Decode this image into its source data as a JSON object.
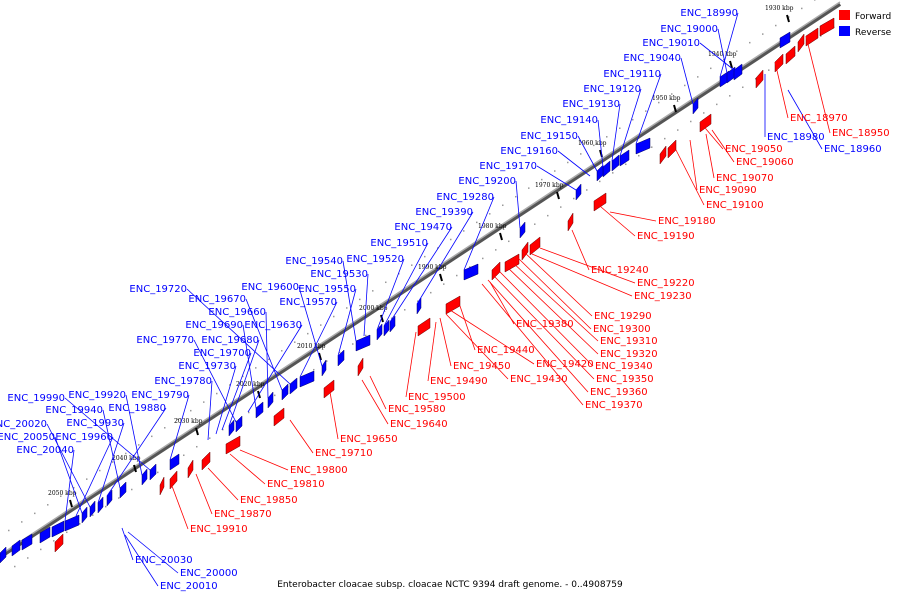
{
  "caption": "Enterobacter cloacae subsp. cloacae NCTC 9394 draft genome. - 0..4908759",
  "legend": [
    {
      "label": "Forward",
      "color": "#ff0000"
    },
    {
      "label": "Reverse",
      "color": "#0000ff"
    }
  ],
  "colors": {
    "forward": "#ff0000",
    "reverse": "#0000ff",
    "backbone": "#888888",
    "leader": "#000000"
  },
  "ticks": [
    "1930 kbp",
    "1940 kbp",
    "1950 kbp",
    "1960 kbp",
    "1970 kbp",
    "1980 kbp",
    "1990 kbp",
    "2000 kbp",
    "2010 kbp",
    "2020 kbp",
    "2030 kbp",
    "2040 kbp",
    "2050 kbp"
  ],
  "reverse_labels": [
    "ENC_18990",
    "ENC_19000",
    "ENC_19010",
    "ENC_19040",
    "ENC_19110",
    "ENC_19120",
    "ENC_19130",
    "ENC_19140",
    "ENC_19150",
    "ENC_19160",
    "ENC_19170",
    "ENC_19200",
    "ENC_19280",
    "ENC_19390",
    "ENC_19470",
    "ENC_19510",
    "ENC_19520",
    "ENC_19540",
    "ENC_19530",
    "ENC_19550",
    "ENC_19600",
    "ENC_19570",
    "ENC_19720",
    "ENC_19670",
    "ENC_19660",
    "ENC_19690",
    "ENC_19630",
    "ENC_19770",
    "ENC_19680",
    "ENC_19700",
    "ENC_19730",
    "ENC_19780",
    "ENC_19790",
    "ENC_19990",
    "ENC_19920",
    "ENC_19940",
    "ENC_19880",
    "ENC_19930",
    "ENC_20020",
    "ENC_20050",
    "ENC_19960",
    "ENC_20040",
    "ENC_18980",
    "ENC_18960",
    "ENC_20030",
    "ENC_20000",
    "ENC_20010"
  ],
  "forward_labels": [
    "ENC_18970",
    "ENC_18950",
    "ENC_19050",
    "ENC_19060",
    "ENC_19070",
    "ENC_19090",
    "ENC_19100",
    "ENC_19180",
    "ENC_19190",
    "ENC_19240",
    "ENC_19220",
    "ENC_19230",
    "ENC_19290",
    "ENC_19300",
    "ENC_19310",
    "ENC_19320",
    "ENC_19340",
    "ENC_19350",
    "ENC_19360",
    "ENC_19370",
    "ENC_19380",
    "ENC_19440",
    "ENC_19420",
    "ENC_19430",
    "ENC_19450",
    "ENC_19490",
    "ENC_19500",
    "ENC_19580",
    "ENC_19640",
    "ENC_19650",
    "ENC_19710",
    "ENC_19800",
    "ENC_19810",
    "ENC_19850",
    "ENC_19870",
    "ENC_19910"
  ]
}
